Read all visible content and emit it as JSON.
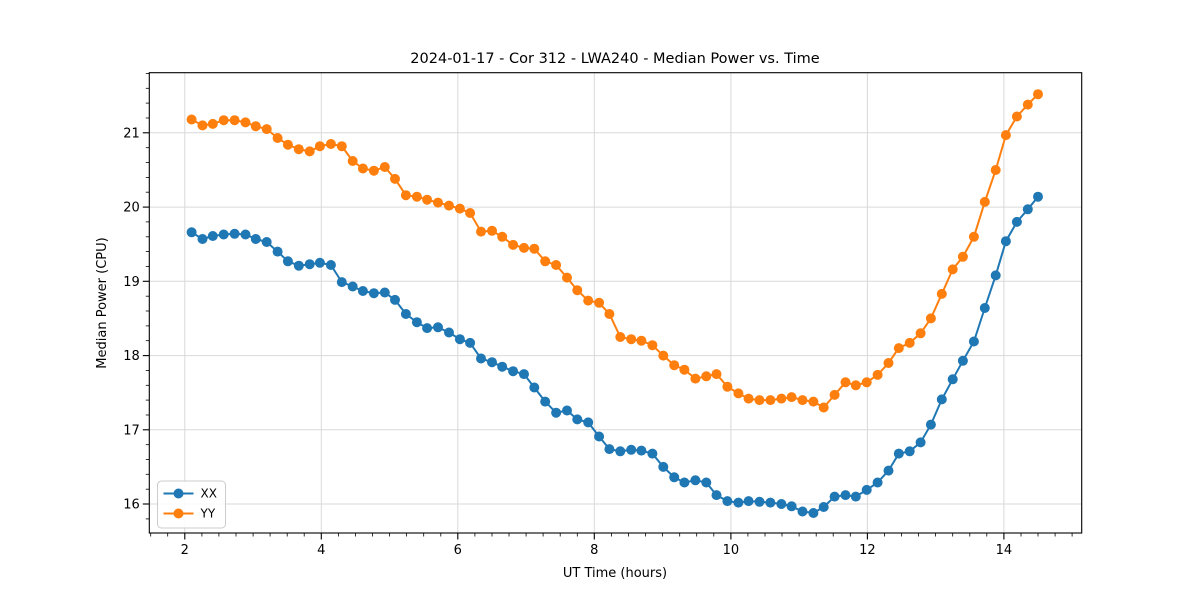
{
  "chart_data": {
    "type": "line",
    "title": "2024-01-17 - Cor 312 - LWA240 - Median Power vs. Time",
    "xlabel": "UT Time (hours)",
    "ylabel": "Median Power (CPU)",
    "xlim": [
      1.48,
      15.14
    ],
    "ylim": [
      15.61,
      21.81
    ],
    "x_major_ticks": [
      2,
      4,
      6,
      8,
      10,
      12,
      14
    ],
    "y_major_ticks": [
      16,
      17,
      18,
      19,
      20,
      21
    ],
    "x_minor_step": 0.25,
    "y_minor_step": 0.2,
    "grid": true,
    "legend_position": "lower left",
    "background": "#ffffff",
    "x": [
      2.1,
      2.26,
      2.41,
      2.57,
      2.73,
      2.89,
      3.04,
      3.2,
      3.36,
      3.51,
      3.67,
      3.83,
      3.98,
      4.14,
      4.3,
      4.46,
      4.61,
      4.77,
      4.93,
      5.08,
      5.24,
      5.4,
      5.55,
      5.71,
      5.87,
      6.03,
      6.18,
      6.34,
      6.5,
      6.65,
      6.81,
      6.97,
      7.12,
      7.28,
      7.44,
      7.6,
      7.75,
      7.91,
      8.07,
      8.22,
      8.38,
      8.54,
      8.69,
      8.85,
      9.01,
      9.17,
      9.32,
      9.48,
      9.64,
      9.79,
      9.95,
      10.11,
      10.26,
      10.42,
      10.58,
      10.74,
      10.89,
      11.05,
      11.21,
      11.36,
      11.52,
      11.68,
      11.83,
      11.99,
      12.15,
      12.31,
      12.46,
      12.62,
      12.78,
      12.93,
      13.09,
      13.25,
      13.4,
      13.56,
      13.72,
      13.88,
      14.03,
      14.19,
      14.35,
      14.5
    ],
    "series": [
      {
        "name": "XX",
        "color": "#1f77b4",
        "values": [
          19.66,
          19.57,
          19.61,
          19.63,
          19.64,
          19.63,
          19.57,
          19.53,
          19.4,
          19.27,
          19.21,
          19.23,
          19.25,
          19.22,
          18.99,
          18.93,
          18.87,
          18.84,
          18.85,
          18.75,
          18.56,
          18.45,
          18.37,
          18.38,
          18.31,
          18.22,
          18.17,
          17.96,
          17.91,
          17.85,
          17.79,
          17.75,
          17.57,
          17.38,
          17.23,
          17.26,
          17.14,
          17.1,
          16.91,
          16.74,
          16.71,
          16.73,
          16.72,
          16.68,
          16.5,
          16.36,
          16.29,
          16.32,
          16.29,
          16.12,
          16.04,
          16.02,
          16.04,
          16.03,
          16.02,
          16.0,
          15.97,
          15.9,
          15.88,
          15.96,
          16.1,
          16.12,
          16.1,
          16.19,
          16.29,
          16.45,
          16.68,
          16.71,
          16.83,
          17.07,
          17.41,
          17.68,
          17.93,
          18.19,
          18.64,
          19.08,
          19.54,
          19.8,
          19.97,
          20.14
        ]
      },
      {
        "name": "YY",
        "color": "#ff7f0e",
        "values": [
          21.18,
          21.1,
          21.12,
          21.17,
          21.17,
          21.14,
          21.09,
          21.05,
          20.93,
          20.84,
          20.78,
          20.75,
          20.82,
          20.85,
          20.82,
          20.62,
          20.52,
          20.49,
          20.54,
          20.38,
          20.16,
          20.14,
          20.1,
          20.06,
          20.02,
          19.98,
          19.92,
          19.67,
          19.68,
          19.6,
          19.49,
          19.45,
          19.44,
          19.27,
          19.22,
          19.05,
          18.88,
          18.74,
          18.71,
          18.56,
          18.25,
          18.22,
          18.2,
          18.14,
          18.0,
          17.87,
          17.81,
          17.69,
          17.72,
          17.75,
          17.58,
          17.49,
          17.42,
          17.4,
          17.4,
          17.42,
          17.44,
          17.4,
          17.38,
          17.3,
          17.47,
          17.64,
          17.6,
          17.64,
          17.74,
          17.9,
          18.1,
          18.17,
          18.3,
          18.5,
          18.83,
          19.16,
          19.33,
          19.6,
          20.07,
          20.5,
          20.97,
          21.22,
          21.38,
          21.52
        ]
      }
    ]
  }
}
